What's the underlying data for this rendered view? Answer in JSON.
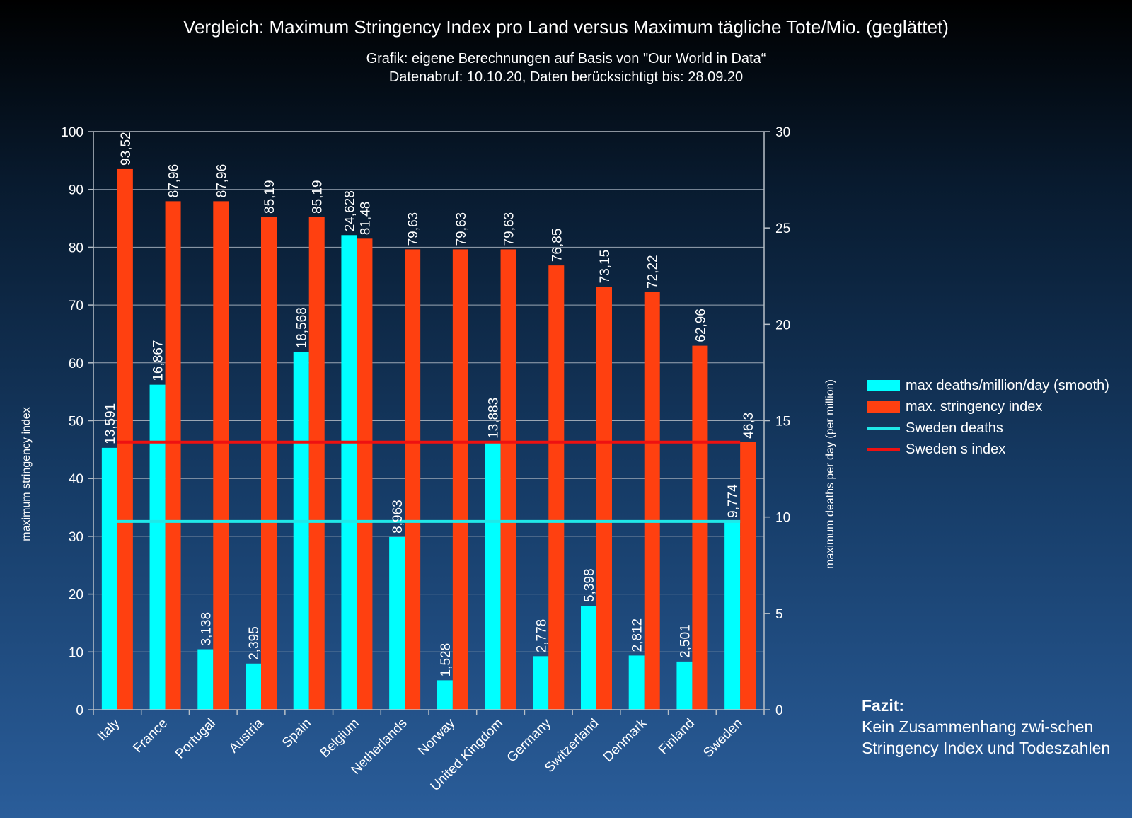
{
  "chart_data": {
    "type": "bar",
    "title": "Vergleich: Maximum Stringency Index pro Land versus Maximum tägliche Tote/Mio. (geglättet)",
    "subtitle_line1": "Grafik: eigene Berechnungen auf Basis von \"Our World in Data“",
    "subtitle_line2": "Datenabruf: 10.10.20, Daten berücksichtigt bis: 28.09.20",
    "ylabel_left": "maximum stringency index",
    "ylabel_right": "maximum deaths per day (per million)",
    "ylim_left": [
      0,
      100
    ],
    "ylim_right": [
      0,
      30
    ],
    "yticks_left": [
      "0",
      "10",
      "20",
      "30",
      "40",
      "50",
      "60",
      "70",
      "80",
      "90",
      "100"
    ],
    "yticks_right": [
      "0",
      "5",
      "10",
      "15",
      "20",
      "25",
      "30"
    ],
    "grid": true,
    "categories": [
      "Italy",
      "France",
      "Portugal",
      "Austria",
      "Spain",
      "Belgium",
      "Netherlands",
      "Norway",
      "United Kingdom",
      "Germany",
      "Switzerland",
      "Denmark",
      "Finland",
      "Sweden"
    ],
    "series": [
      {
        "name": "max deaths/million/day (smooth)",
        "axis": "right",
        "color": "#00ffff",
        "values": [
          13.591,
          16.867,
          3.138,
          2.395,
          18.568,
          24.628,
          8.963,
          1.528,
          13.883,
          2.778,
          5.398,
          2.812,
          2.501,
          9.774
        ],
        "labels": [
          "13,591",
          "16,867",
          "3,138",
          "2,395",
          "18,568",
          "24,628",
          "8,963",
          "1,528",
          "13,883",
          "2,778",
          "5,398",
          "2,812",
          "2,501",
          "9,774"
        ]
      },
      {
        "name": "max. stringency index",
        "axis": "left",
        "color": "#ff4010",
        "values": [
          93.52,
          87.96,
          87.96,
          85.19,
          85.19,
          81.48,
          79.63,
          79.63,
          79.63,
          76.85,
          73.15,
          72.22,
          62.96,
          46.3
        ],
        "labels": [
          "93,52",
          "87,96",
          "87,96",
          "85,19",
          "85,19",
          "81,48",
          "79,63",
          "79,63",
          "79,63",
          "76,85",
          "73,15",
          "72,22",
          "62,96",
          "46,3"
        ]
      }
    ],
    "reference_lines": [
      {
        "name": "Sweden deaths",
        "axis": "right",
        "value": 9.774,
        "color": "#20e8e8"
      },
      {
        "name": "Sweden s index",
        "axis": "left",
        "value": 46.3,
        "color": "#ee1111"
      }
    ],
    "legend_position": "right"
  },
  "conclusion": {
    "heading": "Fazit:",
    "text": "Kein Zusammenhang zwi-schen Stringency Index und Todeszahlen"
  }
}
